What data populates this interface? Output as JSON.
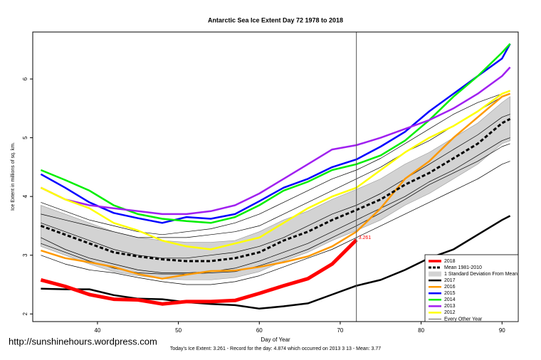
{
  "chart_data": {
    "type": "line",
    "title": "Antarctic Sea Ice Extent Day 72 1978 to 2018",
    "xlabel": "Day of Year",
    "ylabel": "Ice Extent in millions of sq. km.",
    "footer": "Today's Ice Extent: 3.261  - Record for the day: 4.874 which occurred on 2013 3 13  - Mean: 3.77",
    "watermark": "http://sunshinehours.wordpress.com",
    "annotation": "3.261",
    "vline": 72,
    "xlim": [
      32,
      92
    ],
    "ylim": [
      1.87,
      6.8
    ],
    "xticks": [
      40,
      50,
      60,
      70,
      80,
      90
    ],
    "yticks": [
      2,
      3,
      4,
      5,
      6
    ],
    "x": [
      33,
      36,
      39,
      42,
      45,
      48,
      51,
      54,
      57,
      60,
      63,
      66,
      69,
      72,
      75,
      78,
      81,
      84,
      87,
      90,
      91
    ],
    "series": [
      {
        "name": "2018",
        "kind": "highlight",
        "color": "#ff0000",
        "values": [
          2.58,
          2.47,
          2.33,
          2.25,
          2.24,
          2.17,
          2.21,
          2.21,
          2.23,
          2.35,
          2.48,
          2.6,
          2.85,
          3.261,
          null,
          null,
          null,
          null,
          null,
          null,
          null
        ]
      },
      {
        "name": "Mean 1981-2010",
        "kind": "mean",
        "color": "#000000",
        "values": [
          3.5,
          3.35,
          3.2,
          3.05,
          2.98,
          2.93,
          2.9,
          2.9,
          2.95,
          3.05,
          3.25,
          3.4,
          3.6,
          3.77,
          3.95,
          4.2,
          4.4,
          4.65,
          4.9,
          5.25,
          5.32
        ]
      },
      {
        "name": "1 Standard Deviation From Mean",
        "kind": "band",
        "color": "#d3d3d3",
        "upper": [
          3.85,
          3.7,
          3.55,
          3.4,
          3.3,
          3.25,
          3.22,
          3.22,
          3.25,
          3.4,
          3.6,
          3.75,
          3.95,
          4.12,
          4.3,
          4.55,
          4.75,
          5.0,
          5.25,
          5.6,
          5.7
        ],
        "lower": [
          3.15,
          3.0,
          2.85,
          2.72,
          2.65,
          2.6,
          2.58,
          2.58,
          2.62,
          2.72,
          2.9,
          3.05,
          3.25,
          3.42,
          3.6,
          3.85,
          4.05,
          4.3,
          4.55,
          4.9,
          4.95
        ]
      },
      {
        "name": "2017",
        "kind": "year",
        "color": "#000000",
        "values": [
          2.43,
          2.42,
          2.42,
          2.32,
          2.26,
          2.25,
          2.2,
          2.17,
          2.15,
          2.09,
          2.13,
          2.18,
          2.33,
          2.48,
          2.58,
          2.75,
          2.95,
          3.1,
          3.35,
          3.6,
          3.67
        ]
      },
      {
        "name": "2016",
        "kind": "year",
        "color": "#ff9900",
        "values": [
          3.08,
          2.95,
          2.88,
          2.8,
          2.68,
          2.6,
          2.67,
          2.73,
          2.74,
          2.8,
          2.88,
          2.98,
          3.15,
          3.4,
          3.8,
          4.3,
          4.6,
          5.0,
          5.35,
          5.7,
          5.75
        ]
      },
      {
        "name": "2015",
        "kind": "year",
        "color": "#0000ff",
        "values": [
          4.38,
          4.15,
          3.9,
          3.72,
          3.63,
          3.55,
          3.65,
          3.62,
          3.7,
          3.92,
          4.15,
          4.3,
          4.5,
          4.63,
          4.85,
          5.1,
          5.45,
          5.75,
          6.05,
          6.35,
          6.6
        ]
      },
      {
        "name": "2014",
        "kind": "year",
        "color": "#00ee00",
        "values": [
          4.45,
          4.28,
          4.1,
          3.85,
          3.7,
          3.62,
          3.58,
          3.55,
          3.65,
          3.85,
          4.1,
          4.25,
          4.45,
          4.55,
          4.7,
          4.95,
          5.3,
          5.7,
          6.05,
          6.45,
          6.6
        ]
      },
      {
        "name": "2013",
        "kind": "year",
        "color": "#a020f0",
        "values": [
          4.15,
          3.95,
          3.85,
          3.8,
          3.75,
          3.7,
          3.7,
          3.75,
          3.85,
          4.05,
          4.3,
          4.55,
          4.8,
          4.874,
          5.0,
          5.15,
          5.3,
          5.5,
          5.75,
          6.05,
          6.2
        ]
      },
      {
        "name": "2012",
        "kind": "year",
        "color": "#ffff00",
        "values": [
          4.15,
          3.95,
          3.8,
          3.55,
          3.42,
          3.25,
          3.15,
          3.1,
          3.2,
          3.3,
          3.55,
          3.8,
          4.0,
          4.15,
          4.45,
          4.75,
          5.0,
          5.2,
          5.45,
          5.75,
          5.8
        ]
      },
      {
        "name": "Every Other Year",
        "kind": "other",
        "color": "#000000",
        "lines": [
          [
            3.7,
            3.6,
            3.5,
            3.4,
            3.3,
            3.3,
            3.3,
            3.35,
            3.4,
            3.5,
            3.7,
            3.9,
            4.1,
            4.3,
            4.5,
            4.75,
            4.95,
            5.2,
            5.45,
            5.7,
            5.75
          ],
          [
            3.3,
            3.1,
            2.95,
            2.85,
            2.75,
            2.7,
            2.7,
            2.72,
            2.78,
            2.9,
            3.05,
            3.2,
            3.4,
            3.6,
            3.8,
            4.0,
            4.25,
            4.45,
            4.7,
            4.95,
            5.0
          ],
          [
            3.55,
            3.4,
            3.25,
            3.1,
            3.0,
            2.95,
            2.95,
            3.0,
            3.05,
            3.15,
            3.3,
            3.5,
            3.7,
            3.85,
            4.05,
            4.3,
            4.55,
            4.8,
            5.05,
            5.35,
            5.4
          ],
          [
            3.0,
            2.85,
            2.75,
            2.7,
            2.62,
            2.55,
            2.5,
            2.5,
            2.55,
            2.65,
            2.8,
            2.95,
            3.1,
            3.3,
            3.5,
            3.7,
            3.9,
            4.1,
            4.3,
            4.55,
            4.6
          ],
          [
            3.9,
            3.75,
            3.6,
            3.5,
            3.4,
            3.35,
            3.4,
            3.45,
            3.55,
            3.7,
            3.9,
            4.1,
            4.3,
            4.45,
            4.65,
            4.9,
            5.15,
            5.4,
            5.6,
            5.75,
            5.8
          ],
          [
            3.2,
            3.05,
            2.9,
            2.78,
            2.7,
            2.68,
            2.68,
            2.7,
            2.72,
            2.82,
            2.95,
            3.1,
            3.3,
            3.5,
            3.72,
            3.95,
            4.2,
            4.4,
            4.6,
            4.85,
            4.9
          ]
        ]
      }
    ]
  }
}
